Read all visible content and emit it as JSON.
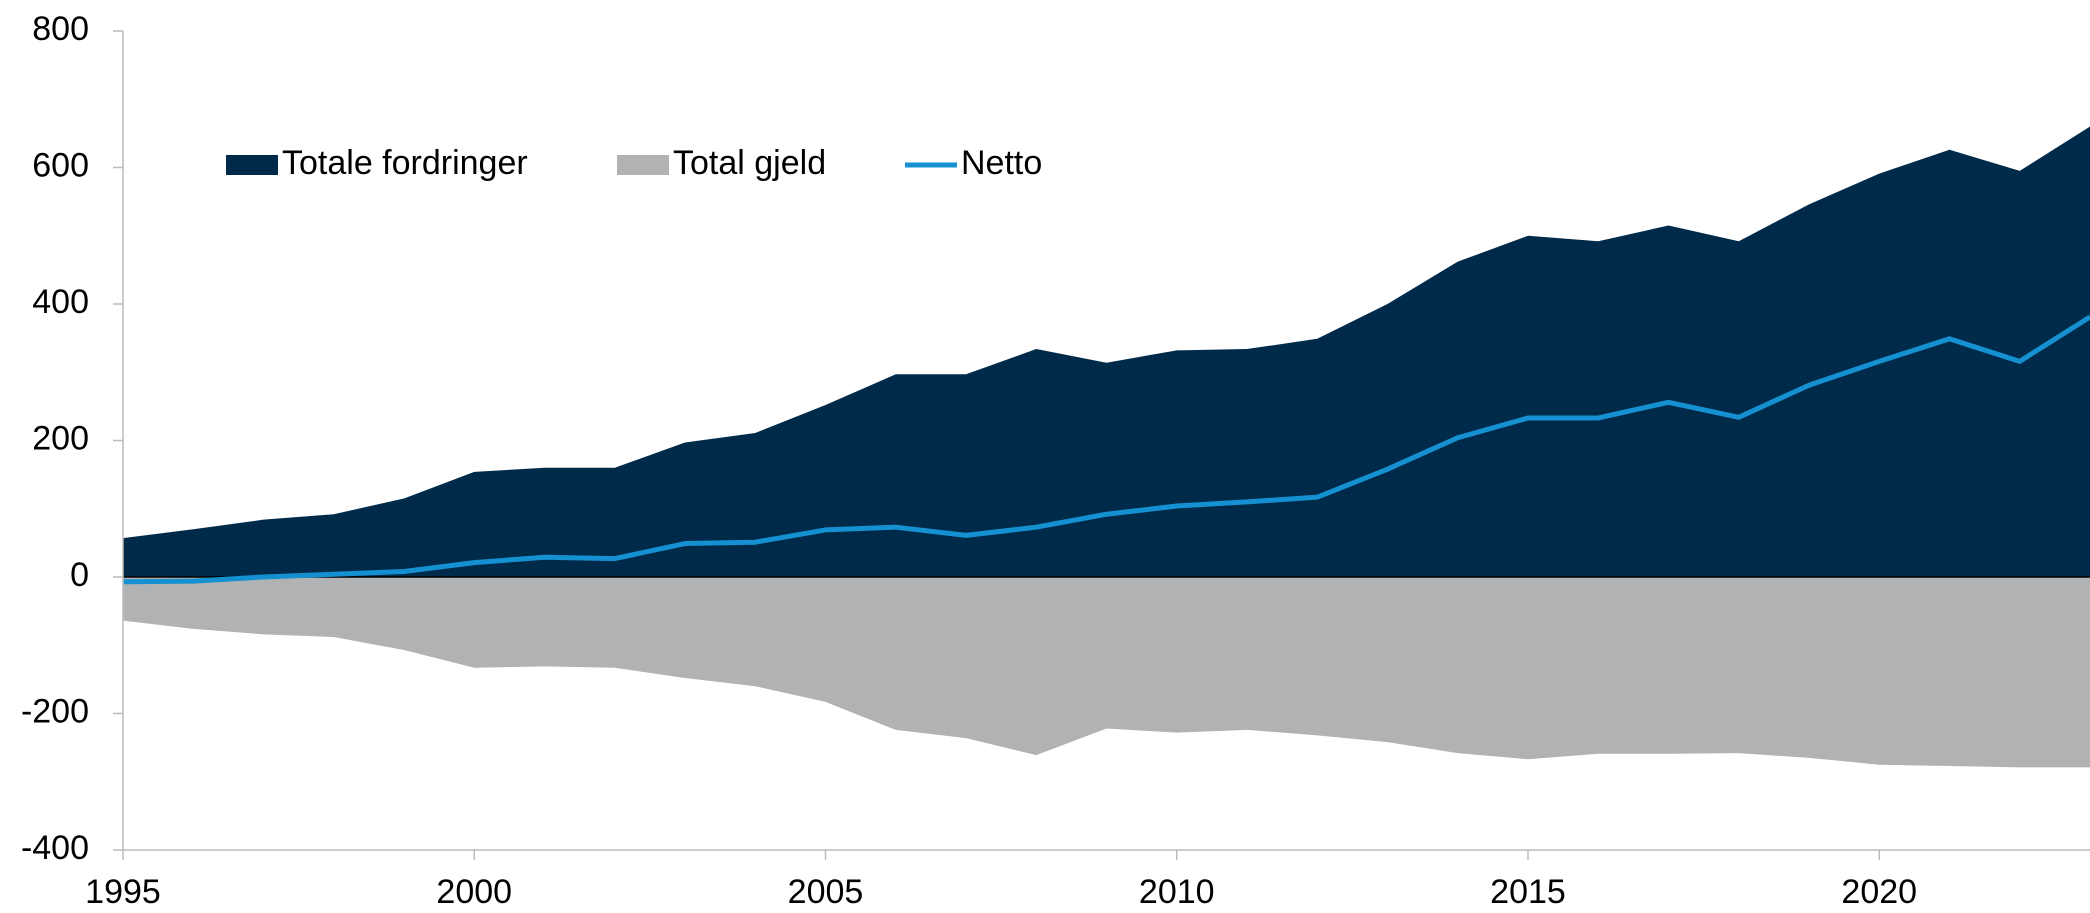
{
  "chart_data": {
    "type": "area",
    "x": [
      1995,
      1996,
      1997,
      1998,
      1999,
      2000,
      2001,
      2002,
      2003,
      2004,
      2005,
      2006,
      2007,
      2008,
      2009,
      2010,
      2011,
      2012,
      2013,
      2014,
      2015,
      2016,
      2017,
      2018,
      2019,
      2020,
      2021,
      2022,
      2023
    ],
    "series": [
      {
        "name": "Totale fordringer",
        "color": "#002a4a",
        "kind": "area",
        "values": [
          57,
          70,
          84,
          92,
          115,
          154,
          160,
          160,
          197,
          211,
          252,
          297,
          297,
          334,
          314,
          332,
          334,
          349,
          400,
          462,
          500,
          492,
          515,
          492,
          546,
          591,
          626,
          595,
          660
        ]
      },
      {
        "name": "Total gjeld",
        "color": "#b1b2b4",
        "kind": "area",
        "values": [
          -64,
          -76,
          -84,
          -88,
          -107,
          -133,
          -131,
          -133,
          -148,
          -160,
          -183,
          -224,
          -236,
          -261,
          -222,
          -228,
          -224,
          -232,
          -242,
          -258,
          -267,
          -259,
          -259,
          -258,
          -265,
          -275,
          -277,
          -279,
          -279
        ]
      },
      {
        "name": "Netto",
        "color": "#1590d0",
        "kind": "line",
        "values": [
          -7,
          -6,
          0,
          4,
          8,
          21,
          29,
          27,
          49,
          51,
          69,
          73,
          61,
          73,
          92,
          104,
          110,
          117,
          158,
          204,
          233,
          233,
          256,
          234,
          281,
          316,
          349,
          316,
          381
        ]
      }
    ],
    "xlim": [
      1995,
      2023
    ],
    "xticks": [
      1995,
      2000,
      2005,
      2010,
      2015,
      2020
    ],
    "ylim": [
      -400,
      800
    ],
    "yticks": [
      -400,
      -200,
      0,
      200,
      400,
      600,
      800
    ],
    "legend": "top-left"
  }
}
